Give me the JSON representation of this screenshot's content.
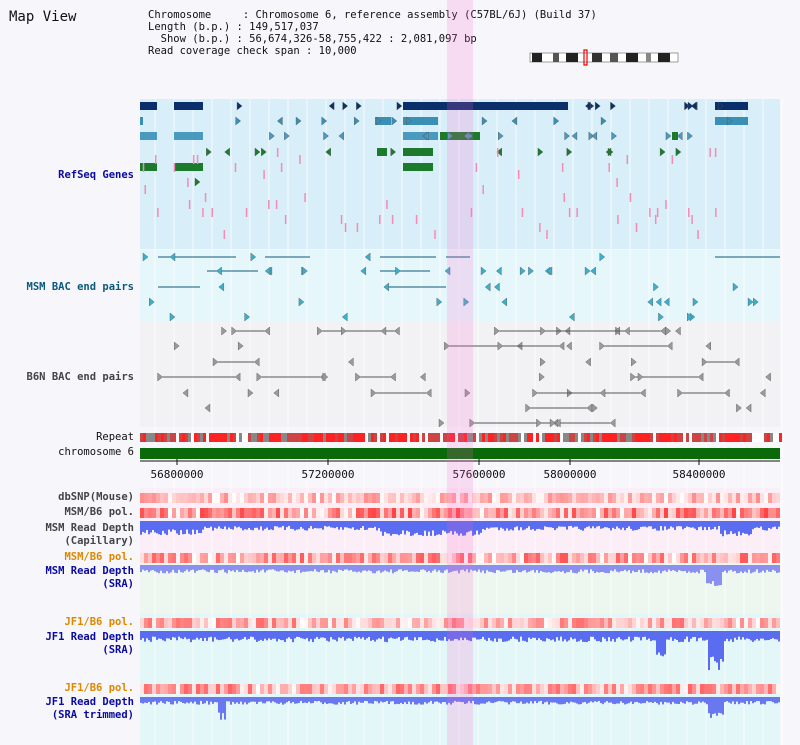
{
  "app_title": "Map View",
  "info": {
    "chromosome_label": "Chromosome     : Chromosome 6, reference assembly (C57BL/6J) (Build 37)",
    "length_label": "Length (b.p.) : 149,517,037",
    "show_label": "  Show (b.p.) : 56,674,326-58,755,422 : 2,081,097 bp",
    "coverage_label": "Read coverage check span : 10,000"
  },
  "tracks": {
    "refseq": "RefSeq Genes",
    "msm_bac": "MSM BAC end pairs",
    "b6n_bac": "B6N BAC end pairs",
    "repeat": "Repeat",
    "chromosome": "chromosome 6",
    "dbsnp": "dbSNP(Mouse)",
    "msm_b6_pol_1": "MSM/B6 pol.",
    "msm_depth_cap_1": "MSM Read Depth",
    "msm_depth_cap_2": "(Capillary)",
    "msm_b6_pol_2": "MSM/B6 pol.",
    "msm_depth_sra_1": "MSM Read Depth",
    "msm_depth_sra_2": "(SRA)",
    "jf1_b6_pol_1": "JF1/B6 pol.",
    "jf1_depth_sra_1": "JF1 Read Depth",
    "jf1_depth_sra_2": "(SRA)",
    "jf1_b6_pol_2": "JF1/B6 pol.",
    "jf1_depth_trim_1": "JF1 Read Depth",
    "jf1_depth_trim_2": "(SRA trimmed)"
  },
  "ruler": {
    "ticks": [
      "56800000",
      "57200000",
      "57600000",
      "58000000",
      "58400000"
    ]
  },
  "colors": {
    "refseq_label": "#0a0aa0",
    "msm_label": "#0a5a7a",
    "b6n_label": "#444444",
    "pol_label": "#dd8800",
    "depth_label": "#0a0aa0",
    "highlight": "#f7c8ee"
  }
}
